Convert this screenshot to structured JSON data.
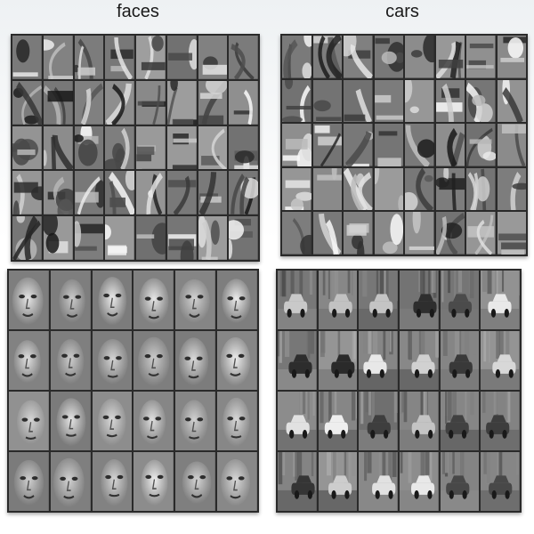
{
  "labels": {
    "left": "faces",
    "right": "cars"
  },
  "panels": [
    {
      "id": "faces-parts",
      "kind": "parts",
      "cols": 8,
      "rows": 5,
      "seed": 11
    },
    {
      "id": "cars-parts",
      "kind": "parts",
      "cols": 8,
      "rows": 5,
      "seed": 29
    },
    {
      "id": "faces-objects",
      "kind": "face",
      "cols": 6,
      "rows": 4,
      "seed": 5
    },
    {
      "id": "cars-objects",
      "kind": "car",
      "cols": 6,
      "rows": 4,
      "seed": 17
    }
  ]
}
